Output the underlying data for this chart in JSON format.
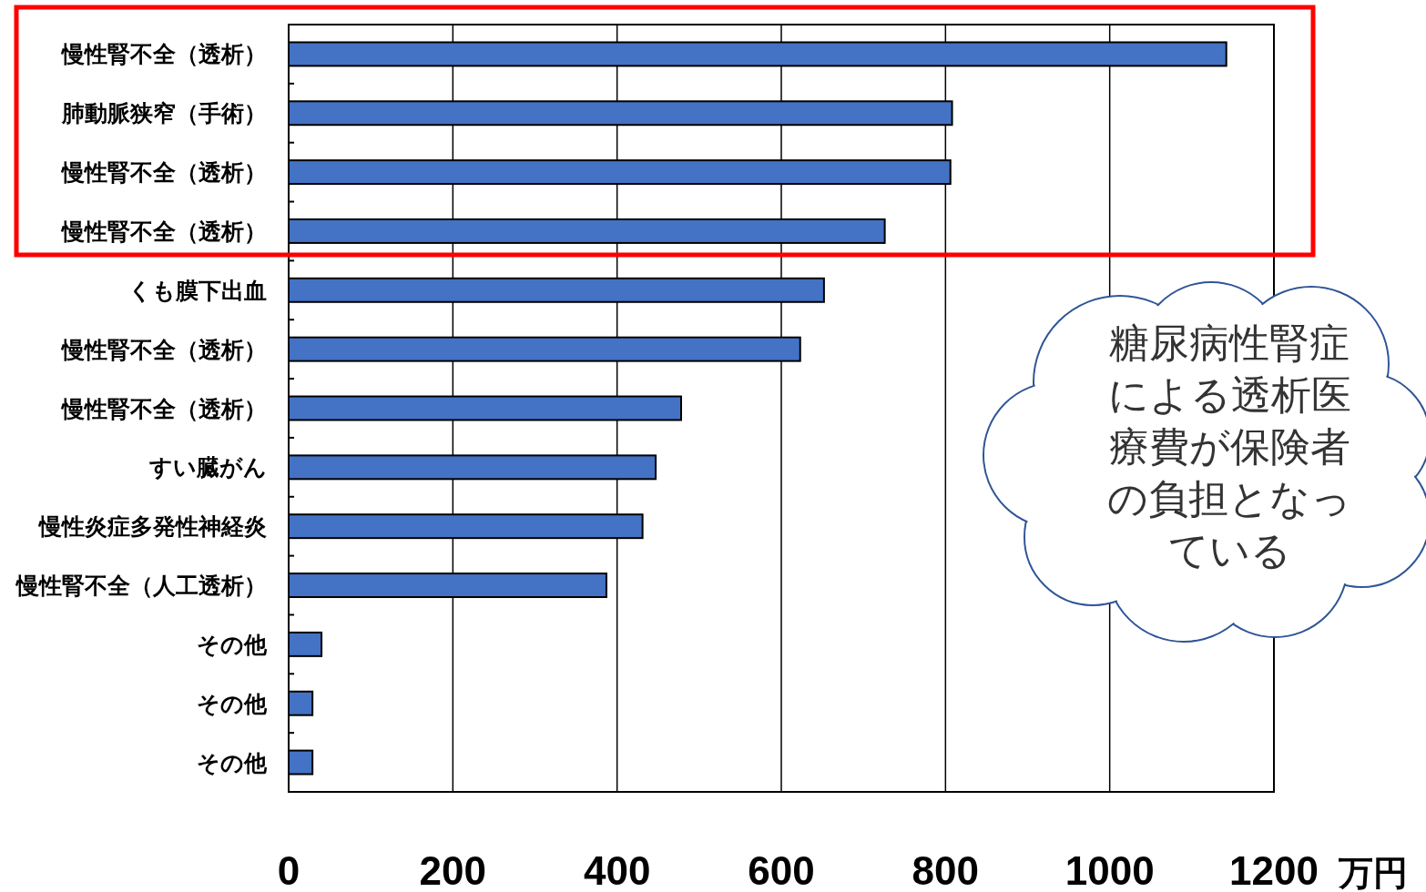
{
  "chart_data": {
    "type": "bar",
    "orientation": "horizontal",
    "categories": [
      "慢性腎不全（透析）",
      "肺動脈狭窄（手術）",
      "慢性腎不全（透析）",
      "慢性腎不全（透析）",
      "くも膜下出血",
      "慢性腎不全（透析）",
      "慢性腎不全（透析）",
      "すい臓がん",
      "慢性炎症多発性神経炎",
      "慢性腎不全（人工透析）",
      "その他",
      "その他",
      "その他"
    ],
    "values": [
      1142,
      808,
      806,
      726,
      652,
      623,
      478,
      447,
      431,
      387,
      40,
      29,
      29
    ],
    "color": "#4472c4",
    "xlim": [
      0,
      1200
    ],
    "xticks": [
      0,
      200,
      400,
      600,
      800,
      1000,
      1200
    ],
    "xlabel": "万円",
    "grid": "x",
    "annotations": [
      "糖尿病性腎症による透析医療費が保険者の負担となっている"
    ]
  }
}
